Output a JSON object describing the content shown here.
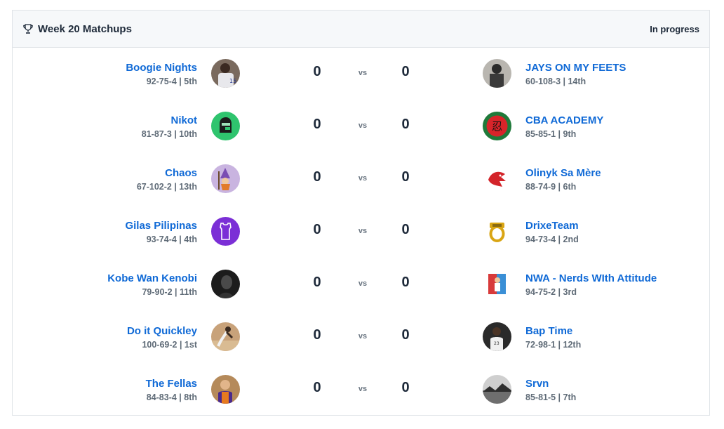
{
  "header": {
    "icon": "trophy-icon",
    "title": "Week 20 Matchups",
    "status": "In progress"
  },
  "vs_label": "vs",
  "matchups": [
    {
      "home": {
        "name": "Boogie Nights",
        "record": "92-75-4 | 5th",
        "score": "0",
        "avatar": "player-jersey-avatar"
      },
      "away": {
        "name": "JAYS ON MY FEETS",
        "record": "60-108-3 | 14th",
        "score": "0",
        "avatar": "photo-avatar"
      }
    },
    {
      "home": {
        "name": "Nikot",
        "record": "81-87-3 | 10th",
        "score": "0",
        "avatar": "knight-helmet-avatar"
      },
      "away": {
        "name": "CBA ACADEMY",
        "record": "85-85-1 | 9th",
        "score": "0",
        "avatar": "red-kanji-avatar"
      }
    },
    {
      "home": {
        "name": "Chaos",
        "record": "67-102-2 | 13th",
        "score": "0",
        "avatar": "wizard-avatar"
      },
      "away": {
        "name": "Olinyk Sa Mère",
        "record": "88-74-9 | 6th",
        "score": "0",
        "avatar": "red-dragon-avatar"
      }
    },
    {
      "home": {
        "name": "Gilas Pilipinas",
        "record": "93-74-4 | 4th",
        "score": "0",
        "avatar": "jersey-avatar"
      },
      "away": {
        "name": "DrixeTeam",
        "record": "94-73-4 | 2nd",
        "score": "0",
        "avatar": "gold-ring-avatar"
      }
    },
    {
      "home": {
        "name": "Kobe Wan Kenobi",
        "record": "79-90-2 | 11th",
        "score": "0",
        "avatar": "dark-photo-avatar"
      },
      "away": {
        "name": "NWA - Nerds WIth Attitude",
        "record": "94-75-2 | 3rd",
        "score": "0",
        "avatar": "comic-avatar"
      }
    },
    {
      "home": {
        "name": "Do it Quickley",
        "record": "100-69-2 | 1st",
        "score": "0",
        "avatar": "dunk-photo-avatar"
      },
      "away": {
        "name": "Bap Time",
        "record": "72-98-1 | 12th",
        "score": "0",
        "avatar": "player-photo-avatar"
      }
    },
    {
      "home": {
        "name": "The Fellas",
        "record": "84-83-4 | 8th",
        "score": "0",
        "avatar": "suns-player-avatar"
      },
      "away": {
        "name": "Srvn",
        "record": "85-81-5 | 7th",
        "score": "0",
        "avatar": "landscape-avatar"
      }
    }
  ]
}
